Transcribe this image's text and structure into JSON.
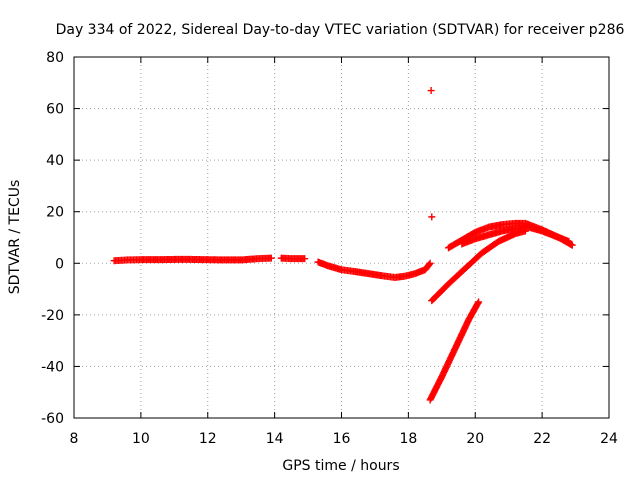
{
  "chart_data": {
    "type": "scatter",
    "title": "Day 334 of 2022, Sidereal Day-to-day VTEC variation (SDTVAR) for receiver p286",
    "xlabel": "GPS time / hours",
    "ylabel": "SDTVAR / TECUs",
    "xlim": [
      8,
      24
    ],
    "ylim": [
      -60,
      80
    ],
    "xticks": [
      8,
      10,
      12,
      14,
      16,
      18,
      20,
      22,
      24
    ],
    "yticks": [
      -60,
      -40,
      -20,
      0,
      20,
      40,
      60,
      80
    ],
    "grid": true,
    "marker": "+",
    "color": "#ff0000",
    "series": [
      {
        "name": "SDTVAR",
        "segments": [
          {
            "x": [
              9.2,
              9.6,
              10.0,
              10.5,
              11.0,
              11.5,
              12.0,
              12.5,
              13.0,
              13.5,
              13.9
            ],
            "y": [
              1.0,
              1.3,
              1.4,
              1.4,
              1.5,
              1.5,
              1.4,
              1.3,
              1.3,
              1.8,
              2.0
            ]
          },
          {
            "x": [
              14.2,
              14.5,
              14.9
            ],
            "y": [
              2.0,
              1.8,
              1.8
            ]
          },
          {
            "x": [
              15.3,
              15.6,
              16.0,
              16.4,
              16.8,
              17.2,
              17.6,
              17.9,
              18.2,
              18.5,
              18.65
            ],
            "y": [
              0.5,
              -1.0,
              -2.5,
              -3.2,
              -4.0,
              -4.8,
              -5.5,
              -5.0,
              -4.0,
              -2.5,
              0.0
            ]
          },
          {
            "x": [
              18.68
            ],
            "y": [
              67
            ]
          },
          {
            "x": [
              18.7
            ],
            "y": [
              18
            ]
          },
          {
            "x": [
              18.7,
              19.2,
              19.7,
              20.2,
              20.7,
              21.2,
              21.5
            ],
            "y": [
              -14.5,
              -8.0,
              -2.0,
              4.0,
              8.5,
              11.5,
              12.5
            ]
          },
          {
            "x": [
              18.65,
              19.0,
              19.4,
              19.8,
              20.1
            ],
            "y": [
              -53.0,
              -44.0,
              -33.0,
              -22.0,
              -15.0
            ]
          },
          {
            "x": [
              19.2,
              19.6,
              20.0,
              20.4,
              20.8,
              21.2,
              21.5,
              22.0,
              22.5,
              22.9
            ],
            "y": [
              6.0,
              9.0,
              12.0,
              14.0,
              15.0,
              15.5,
              15.5,
              13.0,
              10.0,
              7.0
            ]
          },
          {
            "x": [
              19.6,
              20.0,
              20.4,
              20.8,
              21.2,
              21.6,
              22.0,
              22.4,
              22.8
            ],
            "y": [
              7.5,
              9.5,
              11.0,
              12.5,
              13.5,
              14.0,
              12.5,
              10.5,
              8.5
            ]
          }
        ]
      }
    ]
  }
}
